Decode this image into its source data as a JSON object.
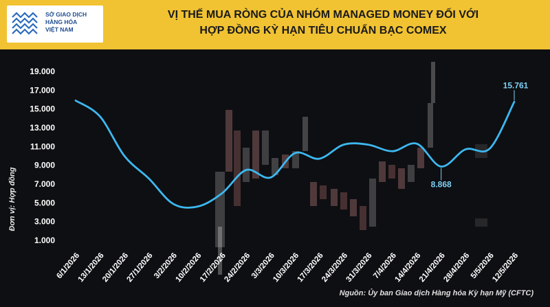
{
  "logo": {
    "lines": [
      "SỞ GIAO DỊCH",
      "HÀNG HÓA",
      "VIỆT NAM"
    ]
  },
  "header": {
    "title_line1": "VỊ THẾ MUA RÒNG CỦA NHÓM MANAGED MONEY ĐỐI VỚI",
    "title_line2": "HỢP ĐỒNG KỲ HẠN TIÊU CHUẨN BẠC COMEX"
  },
  "source": "Nguồn: Ủy ban Giao dịch Hàng hóa Kỳ hạn Mỹ (CFTC)",
  "colors": {
    "header_bg": "#f1c232",
    "line": "#3db8f0",
    "background": "#0e0f12",
    "label": "#ffffff",
    "annotation": "#7fd0f5"
  },
  "chart_data": {
    "type": "line",
    "title": "VỊ THẾ MUA RÒNG CỦA NHÓM MANAGED MONEY ĐỐI VỚI HỢP ĐỒNG KỲ HẠN TIÊU CHUẨN BẠC COMEX",
    "ylabel": "Đơn vị: Hợp đồng",
    "xlabel": "",
    "ylim": [
      1000,
      19000
    ],
    "yticks": [
      "1.000",
      "3.000",
      "5.000",
      "7.000",
      "9.000",
      "11.000",
      "13.000",
      "15.000",
      "17.000",
      "19.000"
    ],
    "ytick_values": [
      1000,
      3000,
      5000,
      7000,
      9000,
      11000,
      13000,
      15000,
      17000,
      19000
    ],
    "categories": [
      "6/1/2026",
      "13/1/2026",
      "20/1/2026",
      "27/1/2026",
      "3/2/2026",
      "10/2/2026",
      "17/2/2026",
      "24/2/2026",
      "3/3/2026",
      "10/3/2026",
      "17/3/2026",
      "24/3/2026",
      "31/3/2026",
      "7/4/2026",
      "14/4/2026",
      "21/4/2026",
      "28/4/2026",
      "5/5/2026",
      "12/5/2026"
    ],
    "series": [
      {
        "values": [
          15900,
          14200,
          10000,
          7600,
          4900,
          4600,
          6000,
          8500,
          7700,
          10300,
          9700,
          11200,
          11200,
          10500,
          11300,
          8868,
          10700,
          10800,
          15761
        ]
      }
    ],
    "annotations": [
      {
        "index": 15,
        "text": "8.868"
      },
      {
        "index": 18,
        "text": "15.761"
      }
    ],
    "grid": false
  }
}
